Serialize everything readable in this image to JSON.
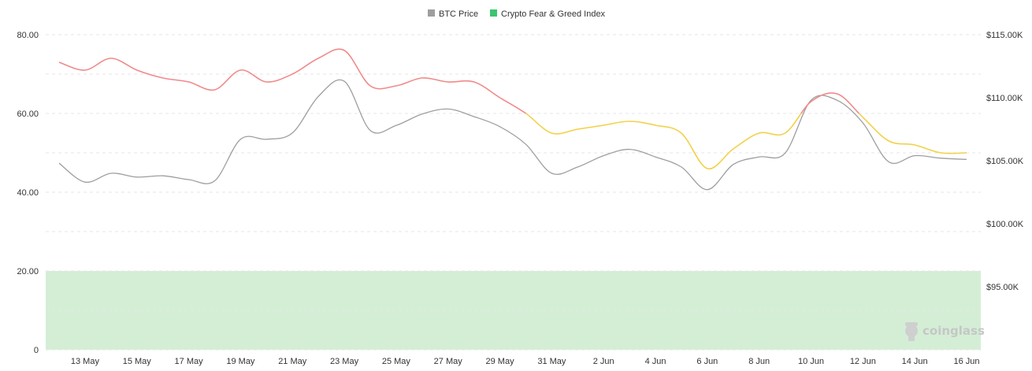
{
  "legend": {
    "btc_label": "BTC Price",
    "fg_label": "Crypto Fear & Greed Index"
  },
  "watermark": {
    "text": "coinglass"
  },
  "colors": {
    "btc": "#9e9e9e",
    "greed": "#f08a8a",
    "neutral": "#f2d14a",
    "fear_zone": "#d4eed6",
    "fg_legend": "#3cc46e"
  },
  "chart_data": {
    "type": "line",
    "title": "",
    "x": [
      "12 May",
      "13 May",
      "14 May",
      "15 May",
      "16 May",
      "17 May",
      "18 May",
      "19 May",
      "20 May",
      "21 May",
      "22 May",
      "23 May",
      "24 May",
      "25 May",
      "26 May",
      "27 May",
      "28 May",
      "29 May",
      "30 May",
      "31 May",
      "1 Jun",
      "2 Jun",
      "3 Jun",
      "4 Jun",
      "5 Jun",
      "6 Jun",
      "7 Jun",
      "8 Jun",
      "9 Jun",
      "10 Jun",
      "11 Jun",
      "12 Jun",
      "13 Jun",
      "14 Jun",
      "15 Jun",
      "16 Jun"
    ],
    "x_tick_labels": [
      "13 May",
      "15 May",
      "17 May",
      "19 May",
      "21 May",
      "23 May",
      "25 May",
      "27 May",
      "29 May",
      "31 May",
      "2 Jun",
      "4 Jun",
      "6 Jun",
      "8 Jun",
      "10 Jun",
      "12 Jun",
      "14 Jun",
      "16 Jun"
    ],
    "y_left": {
      "range": [
        0,
        80
      ],
      "ticks": [
        "0",
        "20.00",
        "40.00",
        "60.00",
        "80.00"
      ]
    },
    "y_right": {
      "range": [
        90000,
        115000
      ],
      "ticks": [
        "$95.00K",
        "$100.00K",
        "$105.00K",
        "$110.00K",
        "$115.00K"
      ]
    },
    "grid": true,
    "legend_position": "top-center",
    "series": [
      {
        "name": "BTC Price",
        "axis": "right",
        "values": [
          104800,
          103300,
          104000,
          103700,
          103800,
          103500,
          103400,
          106700,
          106700,
          107200,
          110100,
          111300,
          107400,
          107800,
          108700,
          109100,
          108500,
          107700,
          106300,
          104000,
          104500,
          105400,
          105900,
          105300,
          104500,
          102700,
          104700,
          105300,
          105600,
          109800,
          109800,
          108000,
          104900,
          105400,
          105200,
          105100
        ]
      },
      {
        "name": "Crypto Fear & Greed Index",
        "axis": "left",
        "values": [
          73,
          71,
          74,
          71,
          69,
          68,
          66,
          71,
          68,
          70,
          74,
          76,
          67,
          67,
          69,
          68,
          68,
          64,
          60,
          55,
          56,
          57,
          58,
          57,
          55,
          46,
          51,
          55,
          55,
          63,
          65,
          59,
          53,
          52,
          50,
          50
        ]
      }
    ],
    "fear_zone": {
      "from": 0,
      "to": 20
    }
  }
}
